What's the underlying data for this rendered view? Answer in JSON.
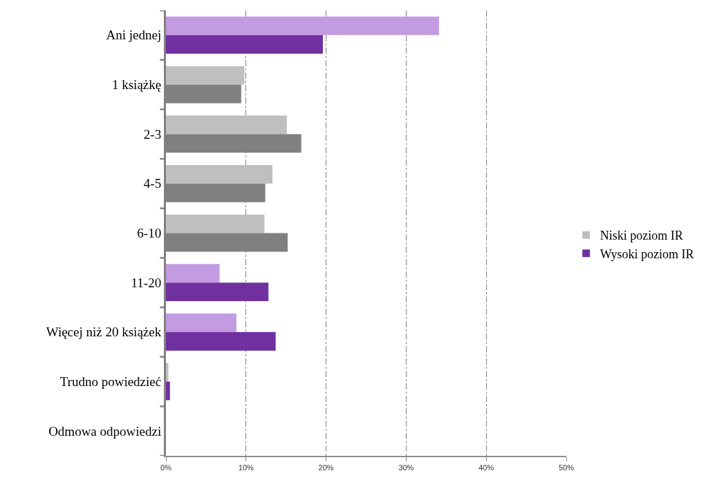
{
  "chart_data": {
    "type": "bar",
    "orientation": "horizontal",
    "categories": [
      "Ani jednej",
      "1 książkę",
      "2-3",
      "4-5",
      "6-10",
      "11-20",
      "Więcej niż 20 książek",
      "Trudno powiedzieć",
      "Odmowa odpowiedzi"
    ],
    "series": [
      {
        "name": "Niski poziom IR",
        "color": "#bfbfbf",
        "colors": [
          "#c39be0",
          "#bfbfbf",
          "#bfbfbf",
          "#bfbfbf",
          "#bfbfbf",
          "#c39be0",
          "#c39be0",
          "#bfbfbf",
          "#bfbfbf"
        ],
        "values": [
          34.1,
          9.8,
          15.1,
          13.3,
          12.3,
          6.7,
          8.8,
          0.3,
          0
        ]
      },
      {
        "name": "Wysoki poziom IR",
        "color": "#7030a0",
        "colors": [
          "#7030a0",
          "#808080",
          "#808080",
          "#808080",
          "#808080",
          "#7030a0",
          "#7030a0",
          "#7030a0",
          "#7030a0"
        ],
        "values": [
          19.6,
          9.4,
          16.9,
          12.4,
          15.2,
          12.8,
          13.7,
          0.5,
          0
        ]
      }
    ],
    "xlim": [
      0,
      50
    ],
    "xticks": [
      {
        "value": 0,
        "label": "0%"
      },
      {
        "value": 10,
        "label": "10%"
      },
      {
        "value": 20,
        "label": "20%"
      },
      {
        "value": 30,
        "label": "30%"
      },
      {
        "value": 40,
        "label": "40%"
      },
      {
        "value": 50,
        "label": "50%"
      }
    ],
    "grid": "x",
    "legend": "right"
  }
}
